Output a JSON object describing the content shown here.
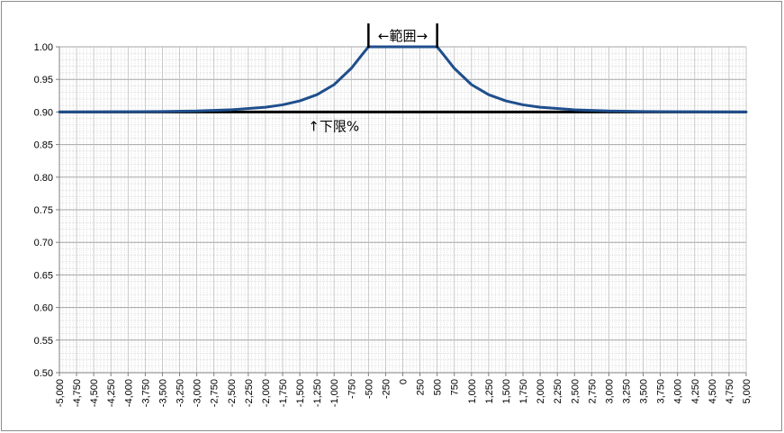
{
  "chart_data": {
    "type": "line",
    "title": "",
    "xlabel": "",
    "ylabel": "",
    "xlim": [
      -5000,
      5000
    ],
    "ylim": [
      0.5,
      1.0
    ],
    "grid": true,
    "legend": "none",
    "y_ticks": [
      0.5,
      0.55,
      0.6,
      0.65,
      0.7,
      0.75,
      0.8,
      0.85,
      0.9,
      0.95,
      1.0
    ],
    "y_tick_labels": [
      "0.50",
      "0.55",
      "0.60",
      "0.65",
      "0.70",
      "0.75",
      "0.80",
      "0.85",
      "0.90",
      "0.95",
      "1.00"
    ],
    "x_ticks": [
      -5000,
      -4750,
      -4500,
      -4250,
      -4000,
      -3750,
      -3500,
      -3250,
      -3000,
      -2750,
      -2500,
      -2250,
      -2000,
      -1750,
      -1500,
      -1250,
      -1000,
      -750,
      -500,
      -250,
      0,
      250,
      500,
      750,
      1000,
      1250,
      1500,
      1750,
      2000,
      2250,
      2500,
      2750,
      3000,
      3250,
      3500,
      3750,
      4000,
      4250,
      4500,
      4750,
      5000
    ],
    "x_tick_labels": [
      "-5,000",
      "-4,750",
      "-4,500",
      "-4,250",
      "-4,000",
      "-3,750",
      "-3,500",
      "-3,250",
      "-3,000",
      "-2,750",
      "-2,500",
      "-2,250",
      "-2,000",
      "-1,750",
      "-1,500",
      "-1,250",
      "-1,000",
      "-750",
      "-500",
      "-250",
      "0",
      "250",
      "500",
      "750",
      "1,000",
      "1,250",
      "1,500",
      "1,750",
      "2,000",
      "2,250",
      "2,500",
      "2,750",
      "3,000",
      "3,250",
      "3,500",
      "3,750",
      "4,000",
      "4,250",
      "4,500",
      "4,750",
      "5,000"
    ],
    "series": [
      {
        "color": "#1f4e8c",
        "x": [
          -5000,
          -4500,
          -4000,
          -3500,
          -3000,
          -2500,
          -2000,
          -1750,
          -1500,
          -1250,
          -1000,
          -750,
          -600,
          -500,
          0,
          500,
          600,
          750,
          1000,
          1250,
          1500,
          1750,
          2000,
          2500,
          3000,
          3500,
          4000,
          4500,
          5000
        ],
        "y": [
          0.9,
          0.9002,
          0.9004,
          0.9008,
          0.9015,
          0.9034,
          0.9073,
          0.911,
          0.917,
          0.9265,
          0.942,
          0.967,
          0.987,
          1.0,
          1.0,
          1.0,
          0.987,
          0.967,
          0.942,
          0.9265,
          0.917,
          0.911,
          0.9073,
          0.9034,
          0.9015,
          0.9008,
          0.9004,
          0.9002,
          0.9
        ]
      },
      {
        "color": "#000000",
        "x": [
          -5000,
          5000
        ],
        "y": [
          0.9,
          0.9
        ]
      }
    ],
    "annotations": {
      "range_label": "←範囲→",
      "range_x": [
        -500,
        500
      ],
      "lower_limit_label": "↑下限%",
      "lower_limit_x": -1300,
      "lower_limit_y": 0.9
    }
  }
}
